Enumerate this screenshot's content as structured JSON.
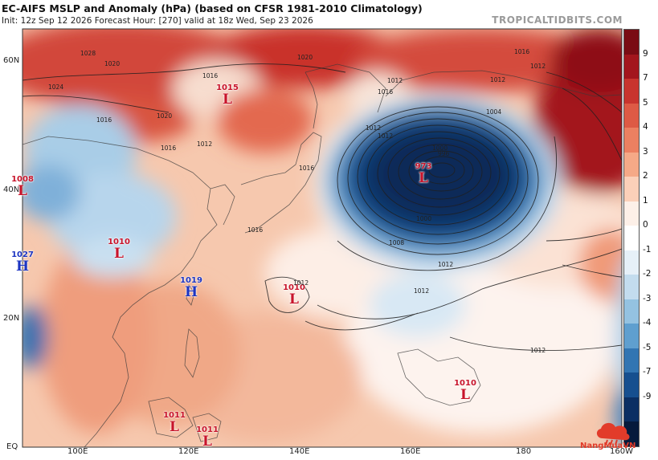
{
  "header": {
    "title": "EC-AIFS MSLP and Anomaly (hPa) (based on CFSR 1981-2010 Climatology)",
    "subtitle": "Init: 12z Sep 12 2026   Forecast Hour: [270]   valid at 18z Wed, Sep 23 2026",
    "brand": "TROPICALTIDBITS.COM"
  },
  "axes": {
    "y_labels": [
      "60N",
      "40N",
      "20N",
      "EQ"
    ],
    "x_labels": [
      "100E",
      "120E",
      "140E",
      "160E",
      "180",
      "160W"
    ]
  },
  "colorbar": {
    "labels": [
      "9",
      "7",
      "5",
      "4",
      "3",
      "2",
      "1",
      "0",
      "-1",
      "-2",
      "-3",
      "-4",
      "-5",
      "-7",
      "-9"
    ],
    "colors": [
      "#7a0c14",
      "#a3161d",
      "#c8342e",
      "#de5a45",
      "#ec8061",
      "#f5a987",
      "#fbd0b9",
      "#fdf0e8",
      "#ffffff",
      "#e6f0f8",
      "#c3dcee",
      "#94c2e1",
      "#5f9fcf",
      "#3275b2",
      "#164f8f",
      "#0b2f63",
      "#061a3c"
    ]
  },
  "pressure_centers": [
    {
      "type": "L",
      "value": "1015",
      "color": "#c8142b"
    },
    {
      "type": "L",
      "value": "973",
      "color": "#c8142b"
    },
    {
      "type": "L",
      "value": "1008",
      "color": "#c8142b"
    },
    {
      "type": "H",
      "value": "1027",
      "color": "#1d35c2"
    },
    {
      "type": "L",
      "value": "1010",
      "color": "#c8142b"
    },
    {
      "type": "H",
      "value": "1019",
      "color": "#1d35c2"
    },
    {
      "type": "L",
      "value": "1010",
      "color": "#c8142b"
    },
    {
      "type": "L",
      "value": "1010",
      "color": "#c8142b"
    },
    {
      "type": "L",
      "value": "1011",
      "color": "#c8142b"
    },
    {
      "type": "L",
      "value": "1011",
      "color": "#c8142b"
    }
  ],
  "isobar_labels": [
    "1024",
    "1028",
    "1020",
    "1016",
    "1020",
    "1012",
    "1016",
    "1012",
    "1012",
    "1016",
    "1004",
    "1000",
    "996",
    "1000",
    "1008",
    "1012",
    "1012",
    "1012",
    "1012",
    "1016",
    "1020",
    "1016",
    "1016",
    "1012",
    "1016",
    "1012",
    "1012"
  ],
  "logo": {
    "text": "NangMuaVN"
  }
}
